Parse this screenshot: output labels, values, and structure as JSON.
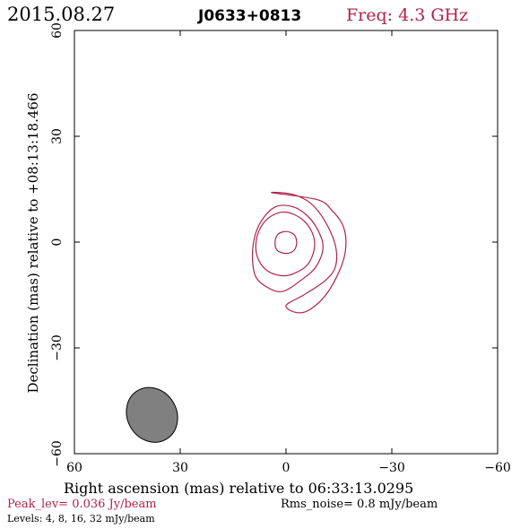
{
  "header": {
    "date": "2015.08.27",
    "source": "J0633+0813",
    "freq": "Freq: 4.3 GHz"
  },
  "footer": {
    "peak": "Peak_lev=  0.036 Jy/beam",
    "rms": "Rms_noise=   0.8 mJy/beam",
    "levels": "Levels:   4,   8,  16,  32 mJy/beam"
  },
  "colors": {
    "accent": "#b0234a",
    "contour": "#b0234a",
    "beam_fill": "#808080",
    "axis": "#000000"
  },
  "chart_data": {
    "type": "contour",
    "xlabel": "Right ascension (mas) relative to 06:33:13.0295",
    "ylabel": "Declination (mas) relative to +08:13:18.466",
    "xlim": [
      60,
      -60
    ],
    "ylim": [
      -60,
      60
    ],
    "xticks": [
      60,
      30,
      0,
      -30,
      -60
    ],
    "yticks": [
      -60,
      -30,
      0,
      30,
      60
    ],
    "xtick_labels": [
      "60",
      "30",
      "0",
      "−30",
      "−60"
    ],
    "ytick_labels": [
      "−60",
      "−30",
      "0",
      "30",
      "60"
    ],
    "grid": false,
    "contour_levels_mJy": [
      4,
      8,
      16,
      32
    ],
    "contours": [
      {
        "level": 4,
        "points": [
          [
            4,
            14
          ],
          [
            -2,
            13.5
          ],
          [
            -7,
            11
          ],
          [
            -11,
            6
          ],
          [
            -14,
            -1
          ],
          [
            -14,
            -7
          ],
          [
            -11,
            -11
          ],
          [
            -5,
            -15
          ],
          [
            0,
            -18
          ],
          [
            -3,
            -20
          ],
          [
            -7,
            -19
          ],
          [
            -12,
            -14
          ],
          [
            -16,
            -6
          ],
          [
            -17,
            0
          ],
          [
            -16,
            5
          ],
          [
            -13,
            9
          ],
          [
            -9,
            12
          ]
        ]
      },
      {
        "level": 8,
        "points": [
          [
            3,
            10
          ],
          [
            -2,
            10
          ],
          [
            -6,
            7.5
          ],
          [
            -9,
            3.5
          ],
          [
            -10.5,
            -1.5
          ],
          [
            -8.5,
            -7
          ],
          [
            -4,
            -11
          ],
          [
            1,
            -14
          ],
          [
            5,
            -13
          ],
          [
            8.5,
            -10
          ],
          [
            9.5,
            -5
          ],
          [
            9,
            1
          ],
          [
            7,
            6
          ]
        ]
      },
      {
        "level": 16,
        "points": [
          [
            0,
            8.5
          ],
          [
            -4.5,
            6.5
          ],
          [
            -7.5,
            2.5
          ],
          [
            -8,
            -2
          ],
          [
            -6,
            -6.5
          ],
          [
            -2,
            -9
          ],
          [
            1.5,
            -9.5
          ],
          [
            5.5,
            -8
          ],
          [
            8,
            -4.5
          ],
          [
            8.5,
            0
          ],
          [
            7,
            4.5
          ],
          [
            4,
            7.5
          ]
        ]
      },
      {
        "level": 32,
        "points": [
          [
            0,
            3
          ],
          [
            -2.4,
            2
          ],
          [
            -3,
            -0.5
          ],
          [
            -2,
            -2.6
          ],
          [
            0.4,
            -3.2
          ],
          [
            2.6,
            -2.2
          ],
          [
            3.1,
            0
          ],
          [
            2.3,
            2.2
          ]
        ]
      }
    ],
    "beam": {
      "ra_center": 38,
      "dec_center": -49,
      "major": 16,
      "minor": 14,
      "pa_deg": -30
    }
  }
}
